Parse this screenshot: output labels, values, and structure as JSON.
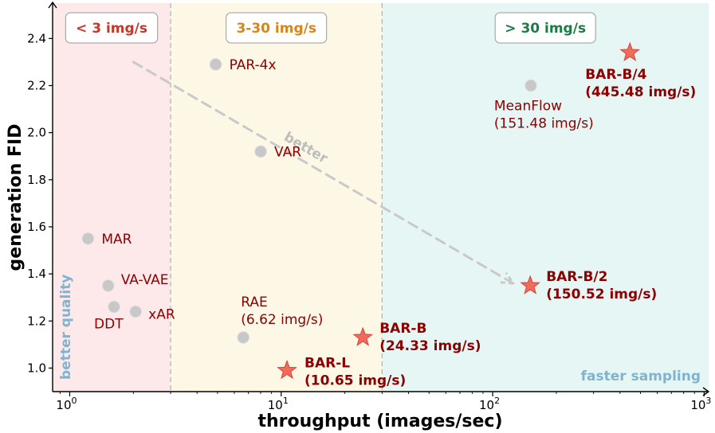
{
  "chart_data": {
    "type": "scatter",
    "xlabel": "throughput (images/sec)",
    "ylabel": "generation FID",
    "xscale": "log",
    "xlim": [
      0.83,
      1050
    ],
    "ylim": [
      0.9,
      2.55
    ],
    "x_ticks": [
      {
        "value": 1,
        "base": "10",
        "exp": "0"
      },
      {
        "value": 10,
        "base": "10",
        "exp": "1"
      },
      {
        "value": 100,
        "base": "10",
        "exp": "2"
      },
      {
        "value": 1000,
        "base": "10",
        "exp": "3"
      }
    ],
    "y_ticks": [
      "1.0",
      "1.2",
      "1.4",
      "1.6",
      "1.8",
      "2.0",
      "2.2",
      "2.4"
    ],
    "regions": [
      {
        "label": "< 3 img/s",
        "x_from": 0.83,
        "x_to": 3,
        "fill": "#fde8ea",
        "text_color": "#c0392b"
      },
      {
        "label": "3-30 img/s",
        "x_from": 3,
        "x_to": 30,
        "fill": "#fdf8e6",
        "text_color": "#d4861c"
      },
      {
        "label": "> 30 img/s",
        "x_from": 30,
        "x_to": 1050,
        "fill": "#e6f6f5",
        "text_color": "#1e7a46"
      }
    ],
    "baselines": [
      {
        "name": "PAR-4x",
        "x": 4.9,
        "y": 2.29,
        "label": [
          "PAR-4x"
        ]
      },
      {
        "name": "VAR",
        "x": 8.0,
        "y": 1.92,
        "label": [
          "VAR"
        ]
      },
      {
        "name": "MAR",
        "x": 1.22,
        "y": 1.55,
        "label": [
          "MAR"
        ]
      },
      {
        "name": "VA-VAE",
        "x": 1.52,
        "y": 1.35,
        "label": [
          "VA-VAE"
        ]
      },
      {
        "name": "DDT",
        "x": 1.62,
        "y": 1.26,
        "label": [
          "DDT"
        ]
      },
      {
        "name": "xAR",
        "x": 2.05,
        "y": 1.24,
        "label": [
          "xAR"
        ]
      },
      {
        "name": "RAE",
        "x": 6.62,
        "y": 1.13,
        "label": [
          "RAE",
          "(6.62 img/s)"
        ]
      },
      {
        "name": "MeanFlow",
        "x": 151.48,
        "y": 2.2,
        "label": [
          "MeanFlow",
          "(151.48 img/s)"
        ]
      }
    ],
    "ours": [
      {
        "name": "BAR-L",
        "x": 10.65,
        "y": 0.99,
        "label": [
          "BAR-L",
          "(10.65 img/s)"
        ]
      },
      {
        "name": "BAR-B",
        "x": 24.33,
        "y": 1.13,
        "label": [
          "BAR-B",
          "(24.33 img/s)"
        ]
      },
      {
        "name": "BAR-B/2",
        "x": 150.52,
        "y": 1.35,
        "label": [
          "BAR-B/2",
          "(150.52 img/s)"
        ]
      },
      {
        "name": "BAR-B/4",
        "x": 445.48,
        "y": 2.34,
        "label": [
          "BAR-B/4",
          "(445.48 img/s)"
        ]
      }
    ],
    "better_arrow": {
      "label": "better",
      "from": [
        2.0,
        2.3
      ],
      "to": [
        125,
        1.36
      ]
    },
    "corner_labels": {
      "left": "better quality",
      "right": "faster sampling"
    },
    "colors": {
      "baseline_marker": "#c8c8c8",
      "ours_marker": "#ef6b5b",
      "label_color": "#8b0000",
      "corner_label": "#7fb3cf",
      "arrow": "#c9c9c9"
    }
  }
}
